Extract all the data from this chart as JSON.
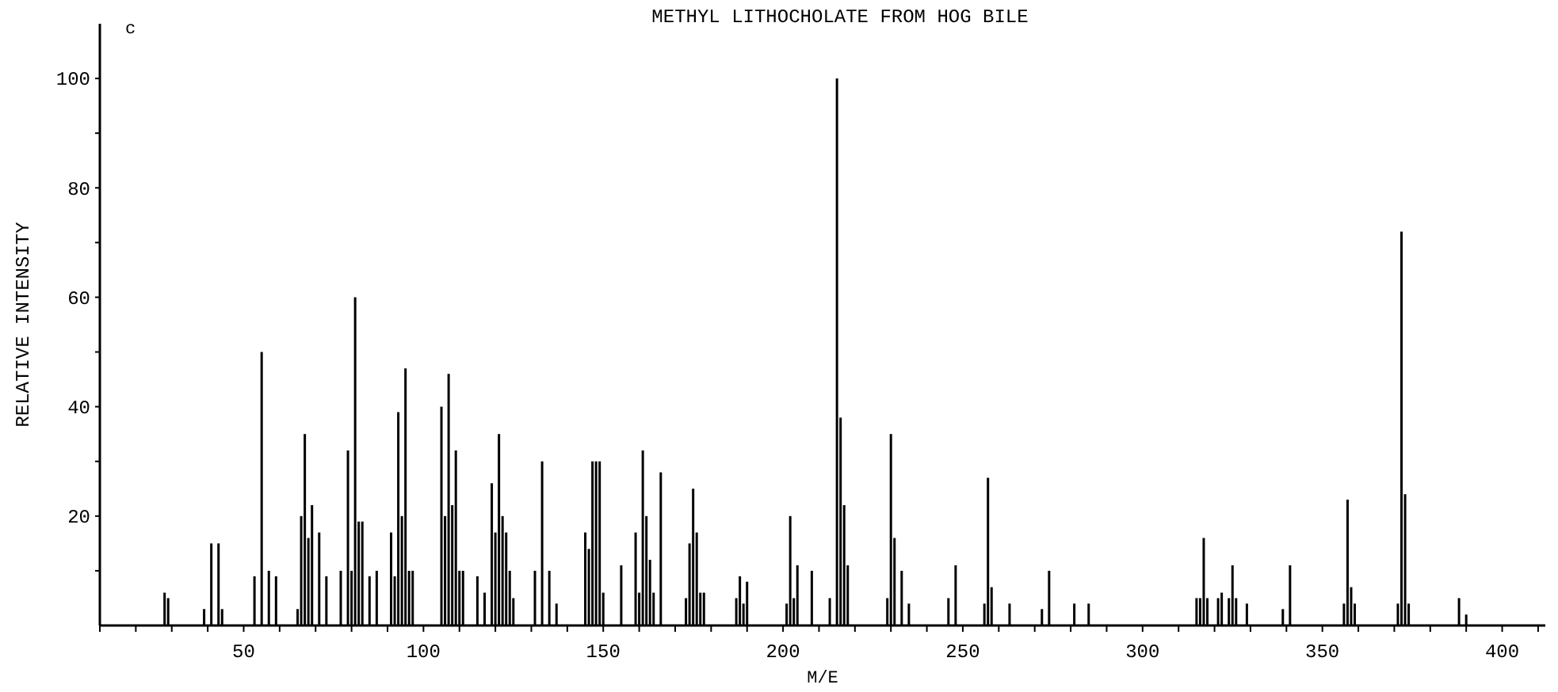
{
  "chart_data": {
    "type": "bar",
    "title": "METHYL LITHOCHOLATE FROM HOG BILE",
    "xlabel": "M/E",
    "ylabel": "RELATIVE INTENSITY",
    "annotations": [
      "c"
    ],
    "color": "#000000",
    "grid": false,
    "x": [
      28,
      29,
      39,
      41,
      43,
      44,
      53,
      55,
      57,
      59,
      65,
      66,
      67,
      68,
      69,
      71,
      73,
      77,
      79,
      80,
      81,
      82,
      83,
      85,
      87,
      91,
      92,
      93,
      94,
      95,
      96,
      97,
      105,
      106,
      107,
      108,
      109,
      110,
      111,
      115,
      117,
      119,
      120,
      121,
      122,
      123,
      124,
      125,
      131,
      133,
      135,
      137,
      145,
      146,
      147,
      148,
      149,
      150,
      155,
      159,
      160,
      161,
      162,
      163,
      164,
      166,
      173,
      174,
      175,
      176,
      177,
      178,
      187,
      188,
      189,
      190,
      201,
      202,
      203,
      204,
      208,
      213,
      215,
      216,
      217,
      218,
      229,
      230,
      231,
      233,
      235,
      246,
      248,
      256,
      257,
      258,
      263,
      272,
      274,
      281,
      285,
      315,
      316,
      317,
      318,
      321,
      322,
      324,
      325,
      326,
      329,
      339,
      341,
      356,
      357,
      358,
      359,
      371,
      372,
      373,
      374,
      388,
      390
    ],
    "values": [
      6,
      5,
      3,
      15,
      15,
      3,
      9,
      50,
      10,
      9,
      3,
      20,
      35,
      16,
      22,
      17,
      9,
      10,
      32,
      10,
      60,
      19,
      19,
      9,
      10,
      17,
      9,
      39,
      20,
      47,
      10,
      10,
      40,
      20,
      46,
      22,
      32,
      10,
      10,
      9,
      6,
      26,
      17,
      35,
      20,
      17,
      10,
      5,
      10,
      30,
      10,
      4,
      17,
      14,
      30,
      30,
      30,
      6,
      11,
      17,
      6,
      32,
      20,
      12,
      6,
      28,
      5,
      15,
      25,
      17,
      6,
      6,
      5,
      9,
      4,
      8,
      4,
      20,
      5,
      11,
      10,
      5,
      100,
      38,
      22,
      11,
      5,
      35,
      16,
      10,
      4,
      5,
      11,
      4,
      27,
      7,
      4,
      3,
      10,
      4,
      4,
      5,
      5,
      16,
      5,
      5,
      6,
      5,
      11,
      5,
      4,
      3,
      11,
      4,
      23,
      7,
      4,
      4,
      72,
      24,
      4,
      5,
      2
    ],
    "xlim": [
      10,
      412
    ],
    "xticks": [
      {
        "value": 10,
        "label": null
      },
      {
        "value": 20,
        "label": null
      },
      {
        "value": 30,
        "label": null
      },
      {
        "value": 40,
        "label": null
      },
      50,
      {
        "value": 60,
        "label": null
      },
      {
        "value": 70,
        "label": null
      },
      {
        "value": 80,
        "label": null
      },
      {
        "value": 90,
        "label": null
      },
      100,
      {
        "value": 110,
        "label": null
      },
      {
        "value": 120,
        "label": null
      },
      {
        "value": 130,
        "label": null
      },
      {
        "value": 140,
        "label": null
      },
      150,
      {
        "value": 160,
        "label": null
      },
      {
        "value": 170,
        "label": null
      },
      {
        "value": 180,
        "label": null
      },
      {
        "value": 190,
        "label": null
      },
      200,
      {
        "value": 210,
        "label": null
      },
      {
        "value": 220,
        "label": null
      },
      {
        "value": 230,
        "label": null
      },
      {
        "value": 240,
        "label": null
      },
      250,
      {
        "value": 260,
        "label": null
      },
      {
        "value": 270,
        "label": null
      },
      {
        "value": 280,
        "label": null
      },
      {
        "value": 290,
        "label": null
      },
      300,
      {
        "value": 310,
        "label": null
      },
      {
        "value": 320,
        "label": null
      },
      {
        "value": 330,
        "label": null
      },
      {
        "value": 340,
        "label": null
      },
      350,
      {
        "value": 360,
        "label": null
      },
      {
        "value": 370,
        "label": null
      },
      {
        "value": 380,
        "label": null
      },
      {
        "value": 390,
        "label": null
      },
      400,
      {
        "value": 410,
        "label": null
      }
    ],
    "ylim": [
      0,
      110
    ],
    "yticks": [
      {
        "value": 10,
        "label": null
      },
      20,
      {
        "value": 30,
        "label": null
      },
      40,
      {
        "value": 50,
        "label": null
      },
      60,
      {
        "value": 70,
        "label": null
      },
      80,
      {
        "value": 90,
        "label": null
      },
      100
    ]
  }
}
